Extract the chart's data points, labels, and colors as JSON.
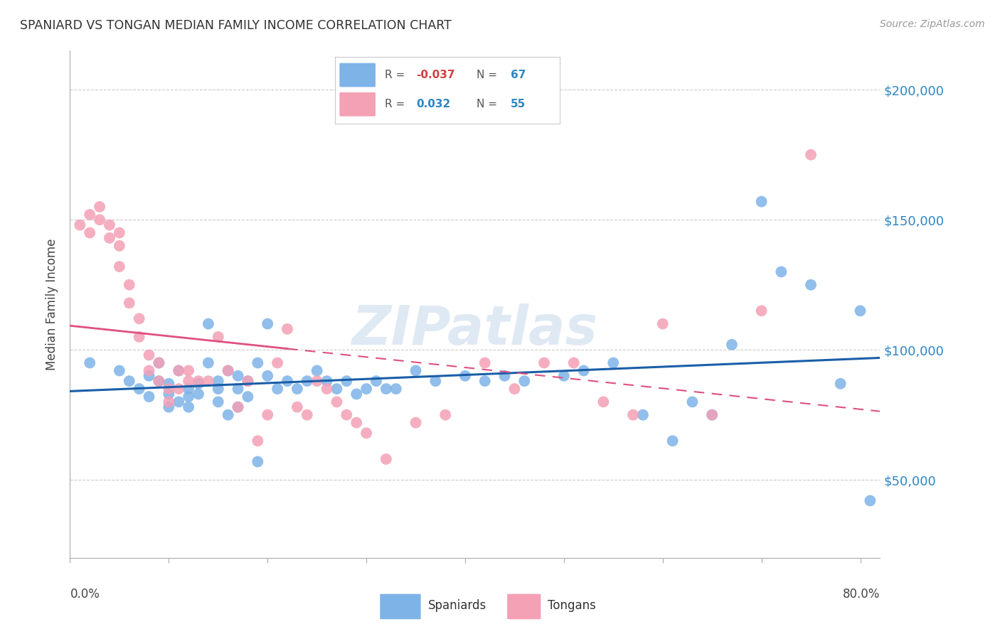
{
  "title": "SPANIARD VS TONGAN MEDIAN FAMILY INCOME CORRELATION CHART",
  "source": "Source: ZipAtlas.com",
  "ylabel": "Median Family Income",
  "yticks": [
    50000,
    100000,
    150000,
    200000
  ],
  "ytick_labels": [
    "$50,000",
    "$100,000",
    "$150,000",
    "$200,000"
  ],
  "ylim": [
    20000,
    215000
  ],
  "xlim": [
    0.0,
    0.82
  ],
  "spaniards_R": "-0.037",
  "spaniards_N": "67",
  "tongans_R": "0.032",
  "tongans_N": "55",
  "watermark": "ZIPatlas",
  "spaniards_color": "#7EB3E8",
  "tongans_color": "#F4A0B5",
  "spaniards_line_color": "#1A5EA8",
  "tongans_line_color": "#E05080",
  "background_color": "#FFFFFF",
  "spaniards_x": [
    0.02,
    0.05,
    0.06,
    0.07,
    0.08,
    0.08,
    0.09,
    0.09,
    0.1,
    0.1,
    0.1,
    0.11,
    0.11,
    0.12,
    0.12,
    0.12,
    0.13,
    0.13,
    0.14,
    0.14,
    0.15,
    0.15,
    0.15,
    0.16,
    0.16,
    0.17,
    0.17,
    0.17,
    0.18,
    0.18,
    0.19,
    0.2,
    0.2,
    0.21,
    0.22,
    0.23,
    0.24,
    0.25,
    0.26,
    0.27,
    0.28,
    0.29,
    0.3,
    0.31,
    0.32,
    0.33,
    0.35,
    0.37,
    0.4,
    0.42,
    0.44,
    0.46,
    0.5,
    0.52,
    0.55,
    0.58,
    0.61,
    0.63,
    0.65,
    0.67,
    0.7,
    0.72,
    0.75,
    0.78,
    0.8,
    0.81,
    0.19
  ],
  "spaniards_y": [
    95000,
    92000,
    88000,
    85000,
    90000,
    82000,
    95000,
    88000,
    87000,
    83000,
    78000,
    92000,
    80000,
    85000,
    82000,
    78000,
    87000,
    83000,
    110000,
    95000,
    88000,
    85000,
    80000,
    92000,
    75000,
    90000,
    85000,
    78000,
    88000,
    82000,
    95000,
    110000,
    90000,
    85000,
    88000,
    85000,
    88000,
    92000,
    88000,
    85000,
    88000,
    83000,
    85000,
    88000,
    85000,
    85000,
    92000,
    88000,
    90000,
    88000,
    90000,
    88000,
    90000,
    92000,
    95000,
    75000,
    65000,
    80000,
    75000,
    102000,
    157000,
    130000,
    125000,
    87000,
    115000,
    42000,
    57000
  ],
  "tongans_x": [
    0.01,
    0.02,
    0.02,
    0.03,
    0.03,
    0.04,
    0.04,
    0.05,
    0.05,
    0.05,
    0.06,
    0.06,
    0.07,
    0.07,
    0.08,
    0.08,
    0.09,
    0.09,
    0.1,
    0.1,
    0.11,
    0.11,
    0.12,
    0.12,
    0.13,
    0.14,
    0.15,
    0.16,
    0.17,
    0.18,
    0.19,
    0.2,
    0.21,
    0.22,
    0.23,
    0.24,
    0.25,
    0.26,
    0.27,
    0.28,
    0.29,
    0.3,
    0.32,
    0.35,
    0.38,
    0.42,
    0.45,
    0.48,
    0.51,
    0.54,
    0.57,
    0.6,
    0.65,
    0.7,
    0.75
  ],
  "tongans_y": [
    148000,
    152000,
    145000,
    155000,
    150000,
    148000,
    143000,
    145000,
    140000,
    132000,
    125000,
    118000,
    112000,
    105000,
    98000,
    92000,
    95000,
    88000,
    85000,
    80000,
    92000,
    85000,
    92000,
    88000,
    88000,
    88000,
    105000,
    92000,
    78000,
    88000,
    65000,
    75000,
    95000,
    108000,
    78000,
    75000,
    88000,
    85000,
    80000,
    75000,
    72000,
    68000,
    58000,
    72000,
    75000,
    95000,
    85000,
    95000,
    95000,
    80000,
    75000,
    110000,
    75000,
    115000,
    175000
  ]
}
